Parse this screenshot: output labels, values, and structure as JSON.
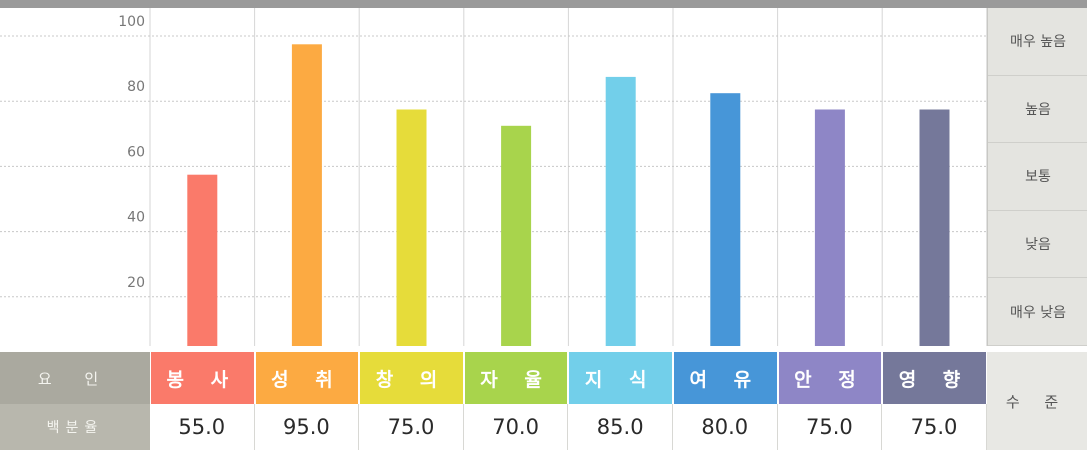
{
  "chart_data": {
    "type": "bar",
    "categories": [
      "봉 사",
      "성 취",
      "창 의",
      "자 율",
      "지 식",
      "여 유",
      "안 정",
      "영 향"
    ],
    "values": [
      55,
      95,
      75,
      70,
      85,
      80,
      75,
      75
    ],
    "value_labels": [
      "55.0",
      "95.0",
      "75.0",
      "70.0",
      "85.0",
      "80.0",
      "75.0",
      "75.0"
    ],
    "colors": [
      "#fa7a6a",
      "#fcaa42",
      "#e6dc3a",
      "#a8d44c",
      "#72cfea",
      "#4796d8",
      "#8e86c6",
      "#75789a"
    ],
    "ylim": [
      0,
      100
    ],
    "yticks": [
      20,
      40,
      60,
      80,
      100
    ],
    "grid": true,
    "levels": [
      "매우 높음",
      "높음",
      "보통",
      "낮음",
      "매우 낮음"
    ]
  },
  "table": {
    "factor_header": "요 인",
    "percent_header": "백분율",
    "level_header": "수 준"
  }
}
